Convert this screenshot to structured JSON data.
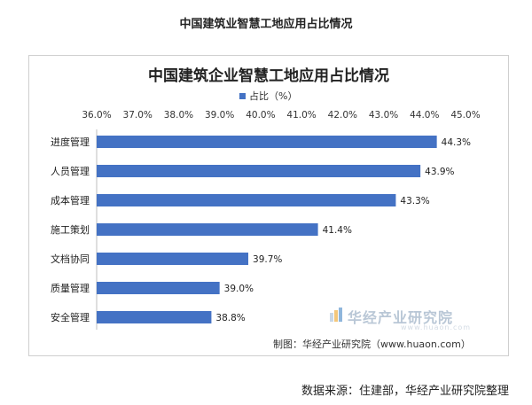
{
  "page": {
    "title": "中国建筑业智慧工地应用占比情况",
    "source": "数据来源：住建部，华经产业研究院整理"
  },
  "watermark": {
    "brand": "华经产业研究院",
    "url": "www.huaon.com"
  },
  "credit": "制图：华经产业研究院（www.huaon.com）",
  "colors": {
    "bar": "#4472c4",
    "grid": "#d9d9d9",
    "text": "#222222"
  },
  "chart_data": {
    "type": "bar",
    "orientation": "horizontal",
    "title": "中国建筑企业智慧工地应用占比情况",
    "legend_position": "top",
    "axis_position": "top",
    "categories": [
      "进度管理",
      "人员管理",
      "成本管理",
      "施工策划",
      "文档协同",
      "质量管理",
      "安全管理"
    ],
    "series": [
      {
        "name": "占比（%）",
        "values": [
          44.3,
          43.9,
          43.3,
          41.4,
          39.7,
          39.0,
          38.8
        ]
      }
    ],
    "value_labels": [
      "44.3%",
      "43.9%",
      "43.3%",
      "41.4%",
      "39.7%",
      "39.0%",
      "38.8%"
    ],
    "xlim": [
      36.0,
      45.0
    ],
    "xticks": [
      36,
      37,
      38,
      39,
      40,
      41,
      42,
      43,
      44,
      45
    ],
    "xtick_labels": [
      "36.0%",
      "37.0%",
      "38.0%",
      "39.0%",
      "40.0%",
      "41.0%",
      "42.0%",
      "43.0%",
      "44.0%",
      "45.0%"
    ],
    "grid": true
  }
}
